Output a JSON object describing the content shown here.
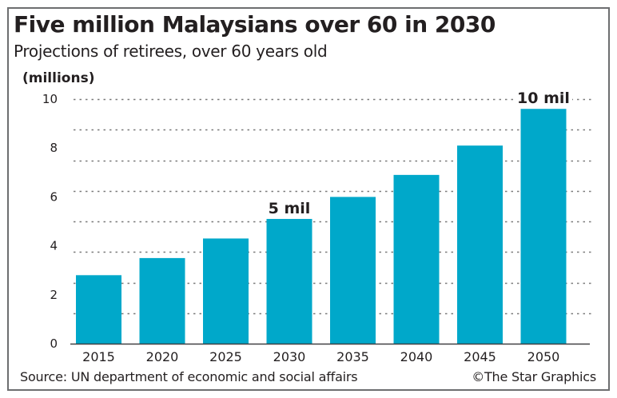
{
  "header": {
    "title": "Five million Malaysians over 60 in 2030",
    "subtitle": "Projections of retirees, over 60 years old"
  },
  "footer": {
    "source": "Source: UN department of economic and social affairs",
    "credit": "©The Star Graphics"
  },
  "colors": {
    "bar": "#00A8CA",
    "text": "#231F20",
    "grid": "#7a7a7a",
    "frame": "#6D6E70"
  },
  "chart_data": {
    "type": "bar",
    "title": "Five million Malaysians over 60 in 2030",
    "subtitle": "Projections of retirees, over 60 years old",
    "xlabel": "",
    "ylabel": "(millions)",
    "categories": [
      "2015",
      "2020",
      "2025",
      "2030",
      "2035",
      "2040",
      "2045",
      "2050"
    ],
    "values": [
      2.8,
      3.5,
      4.3,
      5.1,
      6.0,
      6.9,
      8.1,
      9.6
    ],
    "ylim": [
      0,
      10
    ],
    "yticks": [
      0,
      2,
      4,
      6,
      8,
      10
    ],
    "ytick_labels": [
      "0",
      "2",
      "4",
      "6",
      "8",
      "10"
    ],
    "gridlines": [
      1.25,
      2.5,
      3.75,
      5,
      6.25,
      7.5,
      8.75,
      10
    ],
    "grid": true,
    "grid_style": "dotted",
    "annotations": [
      {
        "category": "2030",
        "text": "5 mil"
      },
      {
        "category": "2050",
        "text": "10 mil"
      }
    ],
    "legend": "none"
  }
}
